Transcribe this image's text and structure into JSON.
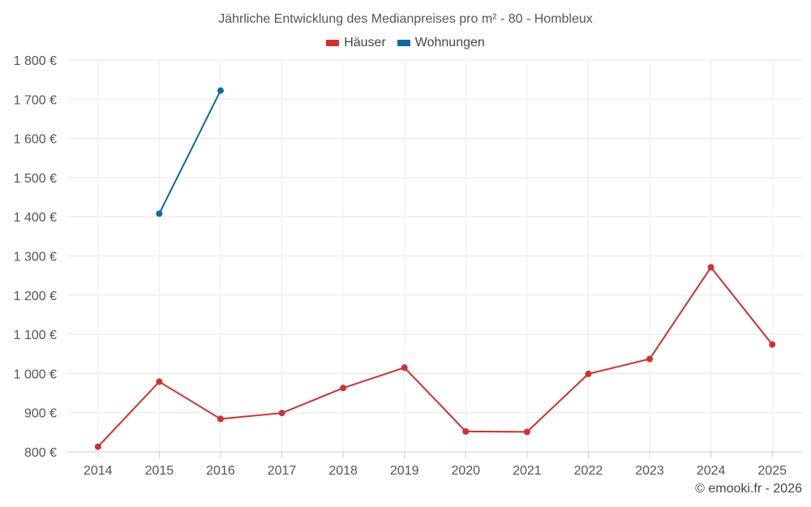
{
  "chart_data": {
    "type": "line",
    "title": "Jährliche Entwicklung des Medianpreises pro m² - 80 - Hombleux",
    "categories": [
      "2014",
      "2015",
      "2016",
      "2017",
      "2018",
      "2019",
      "2020",
      "2021",
      "2022",
      "2023",
      "2024",
      "2025"
    ],
    "series": [
      {
        "name": "Häuser",
        "color": "#d32f2f",
        "values": [
          813,
          979,
          884,
          899,
          963,
          1015,
          852,
          851,
          999,
          1037,
          1271,
          1074
        ]
      },
      {
        "name": "Wohnungen",
        "color": "#0f6aa3",
        "values": [
          null,
          1408,
          1722,
          null,
          null,
          null,
          null,
          null,
          null,
          null,
          null,
          null
        ]
      }
    ],
    "ylim": [
      800,
      1800
    ],
    "yticks": [
      800,
      900,
      1000,
      1100,
      1200,
      1300,
      1400,
      1500,
      1600,
      1700,
      1800
    ],
    "ytick_labels": [
      "800 €",
      "900 €",
      "1 000 €",
      "1 100 €",
      "1 200 €",
      "1 300 €",
      "1 400 €",
      "1 500 €",
      "1 600 €",
      "1 700 €",
      "1 800 €"
    ],
    "xlabel": "",
    "ylabel": "",
    "grid": true,
    "legend_position": "top-center"
  },
  "credit": "© emooki.fr - 2026"
}
